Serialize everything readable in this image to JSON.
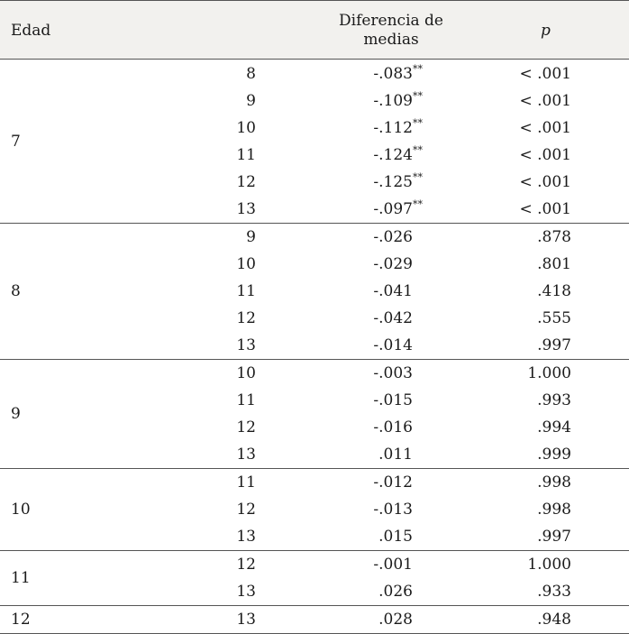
{
  "headers": {
    "edad": "Edad",
    "diferencia": "Diferencia de medias",
    "p": "p"
  },
  "groups": [
    {
      "edad": "7",
      "rows": [
        {
          "age": "8",
          "diff": "-.083",
          "sig": "**",
          "p": "< .001"
        },
        {
          "age": "9",
          "diff": "-.109",
          "sig": "**",
          "p": "< .001"
        },
        {
          "age": "10",
          "diff": "-.112",
          "sig": "**",
          "p": "< .001"
        },
        {
          "age": "11",
          "diff": "-.124",
          "sig": "**",
          "p": "< .001"
        },
        {
          "age": "12",
          "diff": "-.125",
          "sig": "**",
          "p": "< .001"
        },
        {
          "age": "13",
          "diff": "-.097",
          "sig": "**",
          "p": "< .001"
        }
      ]
    },
    {
      "edad": "8",
      "rows": [
        {
          "age": "9",
          "diff": "-.026",
          "sig": "",
          "p": ".878"
        },
        {
          "age": "10",
          "diff": "-.029",
          "sig": "",
          "p": ".801"
        },
        {
          "age": "11",
          "diff": "-.041",
          "sig": "",
          "p": ".418"
        },
        {
          "age": "12",
          "diff": "-.042",
          "sig": "",
          "p": ".555"
        },
        {
          "age": "13",
          "diff": "-.014",
          "sig": "",
          "p": ".997"
        }
      ]
    },
    {
      "edad": "9",
      "rows": [
        {
          "age": "10",
          "diff": "-.003",
          "sig": "",
          "p": "1.000"
        },
        {
          "age": "11",
          "diff": "-.015",
          "sig": "",
          "p": ".993"
        },
        {
          "age": "12",
          "diff": "-.016",
          "sig": "",
          "p": ".994"
        },
        {
          "age": "13",
          "diff": ".011",
          "sig": "",
          "p": ".999"
        }
      ]
    },
    {
      "edad": "10",
      "rows": [
        {
          "age": "11",
          "diff": "-.012",
          "sig": "",
          "p": ".998"
        },
        {
          "age": "12",
          "diff": "-.013",
          "sig": "",
          "p": ".998"
        },
        {
          "age": "13",
          "diff": ".015",
          "sig": "",
          "p": ".997"
        }
      ]
    },
    {
      "edad": "11",
      "rows": [
        {
          "age": "12",
          "diff": "-.001",
          "sig": "",
          "p": "1.000"
        },
        {
          "age": "13",
          "diff": ".026",
          "sig": "",
          "p": ".933"
        }
      ]
    },
    {
      "edad": "12",
      "rows": [
        {
          "age": "13",
          "diff": ".028",
          "sig": "",
          "p": ".948"
        }
      ]
    }
  ]
}
